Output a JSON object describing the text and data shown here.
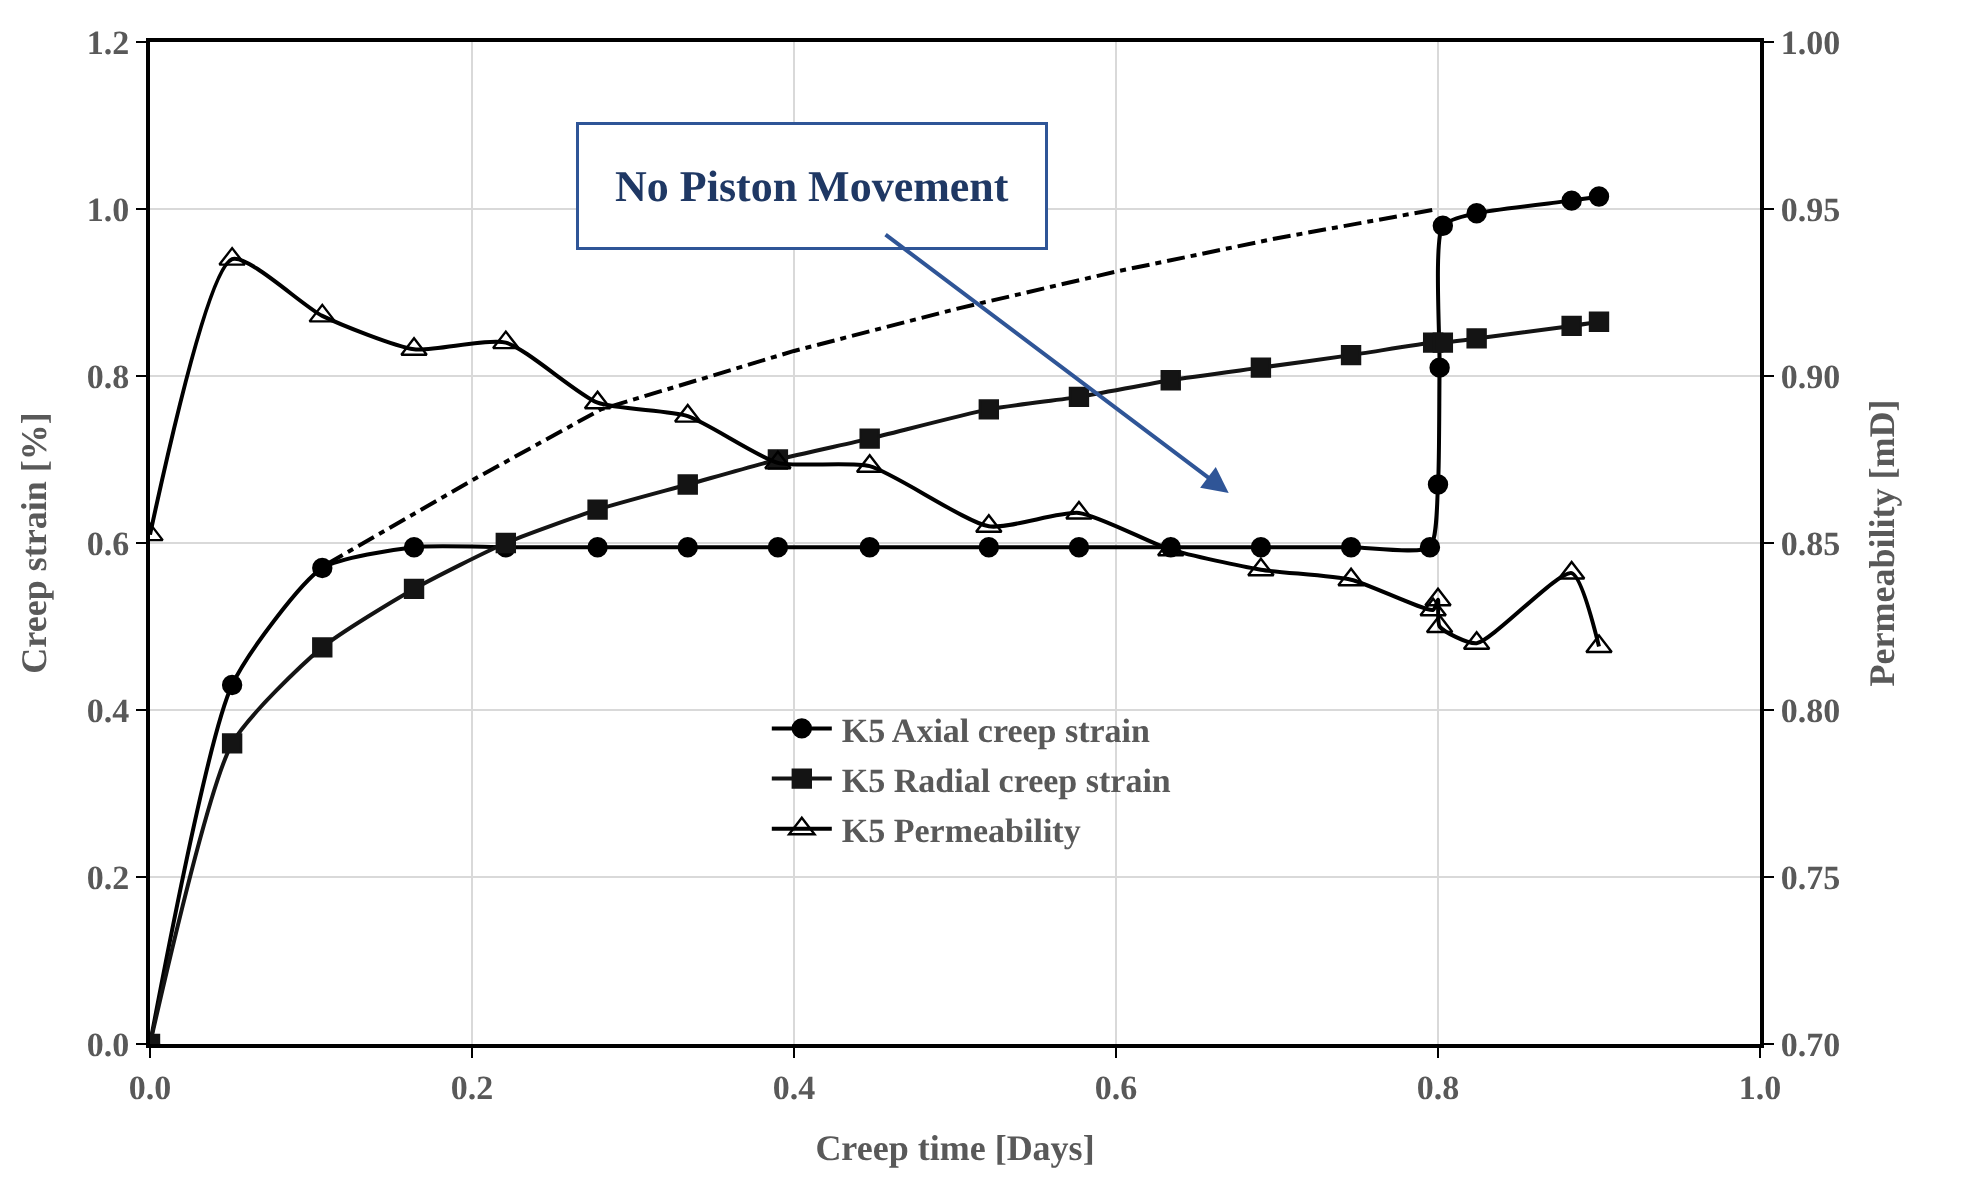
{
  "chart_data": {
    "type": "line",
    "xlabel": "Creep time [Days]",
    "ylabel": "Creep strain [%]",
    "y2label": "Permeability [mD]",
    "xlim": [
      0.0,
      1.0
    ],
    "xticks": [
      {
        "value": 0,
        "label": "0.0"
      },
      0.2,
      0.4,
      0.6,
      0.8,
      {
        "value": 1,
        "label": "1.0"
      }
    ],
    "ylim": [
      0.0,
      1.2
    ],
    "yticks": [
      {
        "value": 0,
        "label": "0.0"
      },
      0.2,
      0.4,
      0.6,
      0.8,
      {
        "value": 1,
        "label": "1.0"
      },
      1.2
    ],
    "y2lim": [
      0.7,
      1.0
    ],
    "y2ticks": [
      {
        "value": 0.7,
        "label": "0.70"
      },
      0.75,
      {
        "value": 0.8,
        "label": "0.80"
      },
      0.85,
      {
        "value": 0.9,
        "label": "0.90"
      },
      0.95,
      {
        "value": 1,
        "label": "1.00"
      }
    ],
    "grid": true,
    "legend": "bottom",
    "annotations": [
      "No Piston Movement"
    ],
    "series": [
      {
        "name": "K5 Axial creep strain",
        "color": "#000000",
        "marker": "circle",
        "line_style": "solid",
        "x": [
          0,
          0.051,
          0.107,
          0.164,
          0.221,
          0.278,
          0.334,
          0.39,
          0.447,
          0.521,
          0.577,
          0.634,
          0.69,
          0.746,
          0.795,
          0.8,
          0.801,
          0.803,
          0.824,
          0.883,
          0.9
        ],
        "values": [
          0,
          0.43,
          0.57,
          0.595,
          0.595,
          0.595,
          0.595,
          0.595,
          0.595,
          0.595,
          0.595,
          0.595,
          0.595,
          0.595,
          0.595,
          0.67,
          0.81,
          0.98,
          0.995,
          1.01,
          1.015
        ]
      },
      {
        "name": "K5 Radial creep strain",
        "color": "#141414",
        "marker": "square",
        "line_style": "solid",
        "x": [
          0,
          0.051,
          0.107,
          0.164,
          0.221,
          0.278,
          0.334,
          0.39,
          0.447,
          0.521,
          0.577,
          0.634,
          0.69,
          0.746,
          0.797,
          0.803,
          0.824,
          0.883,
          0.9
        ],
        "values": [
          0,
          0.36,
          0.475,
          0.545,
          0.6,
          0.64,
          0.67,
          0.7,
          0.725,
          0.76,
          0.775,
          0.795,
          0.81,
          0.825,
          0.84,
          0.84,
          0.845,
          0.86,
          0.865
        ]
      },
      {
        "name": "K5 Permeability",
        "color": "#000000",
        "marker": "triangle",
        "line_style": "solid",
        "axis": "y2",
        "x": [
          0,
          0.051,
          0.107,
          0.164,
          0.221,
          0.278,
          0.334,
          0.39,
          0.447,
          0.521,
          0.577,
          0.634,
          0.69,
          0.746,
          0.797,
          0.8,
          0.801,
          0.824,
          0.883,
          0.9
        ],
        "values": [
          0.8525,
          0.935,
          0.918,
          0.908,
          0.91,
          0.892,
          0.888,
          0.874,
          0.873,
          0.855,
          0.859,
          0.848,
          0.842,
          0.839,
          0.83,
          0.833,
          0.825,
          0.82,
          0.841,
          0.819
        ]
      },
      {
        "color": "#000000",
        "marker": "none",
        "line_style": "dashdot",
        "x": [
          0.11,
          0.2,
          0.28,
          0.4,
          0.5,
          0.6,
          0.7,
          0.8
        ],
        "values": [
          0.575,
          0.675,
          0.76,
          0.83,
          0.88,
          0.925,
          0.965,
          1.0
        ]
      }
    ]
  }
}
